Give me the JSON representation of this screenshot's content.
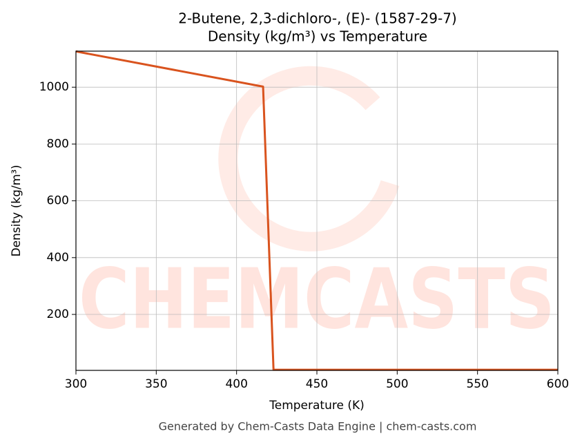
{
  "chart_data": {
    "type": "line",
    "title": "2-Butene, 2,3-dichloro-, (E)- (1587-29-7)",
    "subtitle": "Density (kg/m³) vs Temperature",
    "x_label": "Temperature (K)",
    "y_label": "Density (kg/m³)",
    "footer": "Generated by Chem-Casts Data Engine | chem-casts.com",
    "watermark": "CHEMCASTS",
    "x": [
      300,
      416.5,
      423,
      600
    ],
    "series": [
      {
        "name": "Density",
        "color": "#d9531e",
        "values": [
          1126,
          1002,
          5,
          5
        ]
      }
    ],
    "xlim": [
      300,
      600
    ],
    "ylim": [
      3,
      1127
    ],
    "xticks": [
      300,
      350,
      400,
      450,
      500,
      550,
      600
    ],
    "yticks": [
      200,
      400,
      600,
      800,
      1000
    ],
    "grid": true
  }
}
